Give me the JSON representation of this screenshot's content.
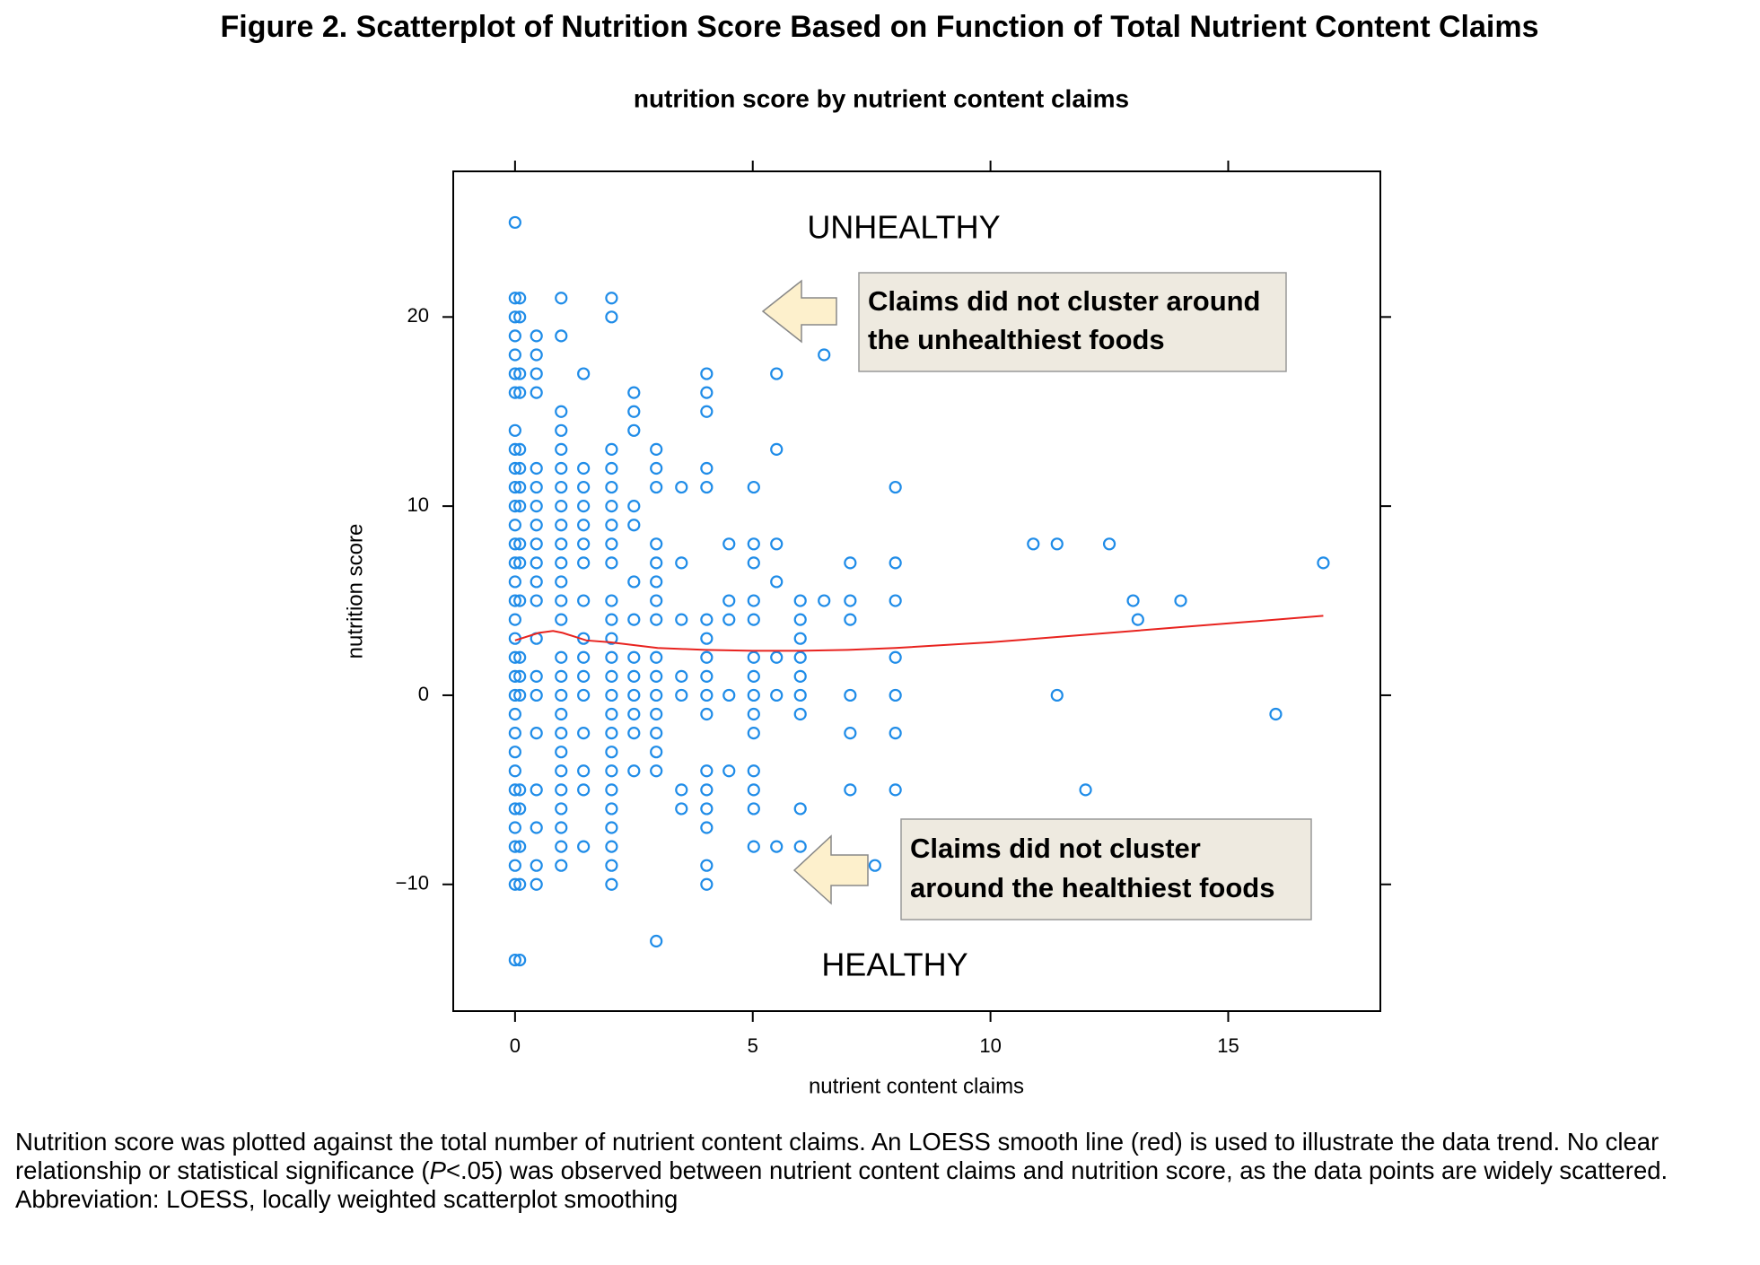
{
  "chart_data": {
    "type": "scatter",
    "figure_title": "Figure 2. Scatterplot of Nutrition Score Based on Function of Total Nutrient Content Claims",
    "title": "nutrition score by nutrient content claims",
    "x_label": "nutrient content claims",
    "y_label": "nutrition score",
    "xlim": [
      -1.3,
      18.2
    ],
    "ylim": [
      -16.7,
      27.7
    ],
    "xticks": [
      0,
      5,
      10,
      15
    ],
    "yticks": [
      {
        "value": -10,
        "label": "−10"
      },
      0,
      10,
      20
    ],
    "annotations": [
      "UNHEALTHY",
      "HEALTHY"
    ],
    "callouts": [
      {
        "lines": [
          "Claims did not cluster around",
          "the unhealthiest foods"
        ]
      },
      {
        "lines": [
          "Claims did not cluster",
          "around the healthiest foods"
        ]
      }
    ],
    "series": [
      {
        "color": "#1f8ce8",
        "x": [
          0,
          0,
          0,
          0,
          0,
          0,
          0,
          0,
          0,
          0,
          0,
          0,
          0,
          0,
          0,
          0,
          0,
          0,
          0,
          0,
          0,
          0,
          0,
          0,
          0,
          0,
          0,
          0,
          0,
          0,
          0,
          0,
          0,
          0.1,
          0.1,
          0.1,
          0.1,
          0.1,
          0.1,
          0.1,
          0.1,
          0.1,
          0.1,
          0.1,
          0.1,
          0.1,
          0.1,
          0.1,
          0.1,
          0.1,
          0.1,
          0.1,
          0.45,
          0.45,
          0.45,
          0.45,
          0.45,
          0.45,
          0.45,
          0.45,
          0.45,
          0.45,
          0.45,
          0.45,
          0.45,
          0.45,
          0.45,
          0.45,
          0.45,
          0.45,
          0.45,
          0.45,
          0.97,
          0.97,
          0.97,
          0.97,
          0.97,
          0.97,
          0.97,
          0.97,
          0.97,
          0.97,
          0.97,
          0.97,
          0.97,
          0.97,
          0.97,
          0.97,
          0.97,
          0.97,
          0.97,
          0.97,
          0.97,
          0.97,
          0.97,
          0.97,
          0.97,
          0.97,
          1.44,
          1.44,
          1.44,
          1.44,
          1.44,
          1.44,
          1.44,
          1.44,
          1.44,
          1.44,
          1.44,
          1.44,
          1.44,
          1.44,
          1.44,
          1.44,
          2.03,
          2.03,
          2.03,
          2.03,
          2.03,
          2.03,
          2.03,
          2.03,
          2.03,
          2.03,
          2.03,
          2.03,
          2.03,
          2.03,
          2.03,
          2.03,
          2.03,
          2.03,
          2.03,
          2.03,
          2.03,
          2.03,
          2.03,
          2.03,
          2.03,
          2.5,
          2.5,
          2.5,
          2.5,
          2.5,
          2.5,
          2.5,
          2.5,
          2.5,
          2.5,
          2.5,
          2.5,
          2.5,
          2.97,
          2.97,
          2.97,
          2.97,
          2.97,
          2.97,
          2.97,
          2.97,
          2.97,
          2.97,
          2.97,
          2.97,
          2.97,
          2.97,
          2.97,
          2.97,
          3.5,
          3.5,
          3.5,
          3.5,
          3.5,
          3.5,
          3.5,
          4.03,
          4.03,
          4.03,
          4.03,
          4.03,
          4.03,
          4.03,
          4.03,
          4.03,
          4.03,
          4.03,
          4.03,
          4.03,
          4.03,
          4.03,
          4.03,
          4.03,
          4.5,
          4.5,
          4.5,
          4.5,
          4.5,
          5.02,
          5.02,
          5.02,
          5.02,
          5.02,
          5.02,
          5.02,
          5.02,
          5.02,
          5.02,
          5.02,
          5.02,
          5.02,
          5.02,
          5.5,
          5.5,
          5.5,
          5.5,
          5.5,
          5.5,
          5.5,
          6,
          6,
          6,
          6,
          6,
          6,
          6,
          6,
          6,
          6.5,
          6.5,
          7.05,
          7.05,
          7.05,
          7.05,
          7.05,
          7.05,
          7.57,
          8,
          8,
          8,
          8,
          8,
          8,
          8,
          10.9,
          11.4,
          11.4,
          12,
          12.5,
          13,
          13.1,
          14,
          16,
          17
        ],
        "values": [
          25,
          21,
          20,
          19,
          18,
          17,
          16,
          14,
          13,
          12,
          11,
          10,
          9,
          8,
          7,
          6,
          5,
          4,
          3,
          2,
          1,
          0,
          -1,
          -2,
          -3,
          -4,
          -5,
          -6,
          -7,
          -8,
          -9,
          -10,
          -14,
          21,
          20,
          17,
          16,
          13,
          12,
          11,
          10,
          8,
          7,
          5,
          2,
          1,
          0,
          -5,
          -6,
          -8,
          -10,
          -14,
          19,
          18,
          17,
          16,
          12,
          11,
          10,
          9,
          8,
          7,
          6,
          5,
          3,
          1,
          0,
          -2,
          -5,
          -7,
          -9,
          -10,
          21,
          19,
          15,
          14,
          13,
          12,
          11,
          10,
          9,
          8,
          7,
          6,
          5,
          4,
          2,
          1,
          0,
          -1,
          -2,
          -3,
          -4,
          -5,
          -6,
          -7,
          -8,
          -9,
          17,
          12,
          11,
          10,
          9,
          8,
          7,
          5,
          3,
          2,
          1,
          0,
          -2,
          -4,
          -5,
          -8,
          21,
          20,
          13,
          12,
          11,
          10,
          9,
          8,
          7,
          5,
          4,
          3,
          2,
          1,
          0,
          -1,
          -2,
          -3,
          -4,
          -5,
          -6,
          -7,
          -8,
          -9,
          -10,
          16,
          15,
          14,
          10,
          9,
          6,
          4,
          2,
          1,
          0,
          -1,
          -2,
          -4,
          13,
          12,
          11,
          8,
          7,
          6,
          5,
          4,
          2,
          1,
          0,
          -1,
          -2,
          -3,
          -4,
          -13,
          11,
          7,
          4,
          1,
          0,
          -5,
          -6,
          17,
          16,
          15,
          12,
          11,
          4,
          3,
          2,
          1,
          0,
          -1,
          -4,
          -5,
          -6,
          -7,
          -9,
          -10,
          8,
          5,
          4,
          0,
          -4,
          11,
          8,
          7,
          5,
          4,
          2,
          1,
          0,
          -1,
          -2,
          -4,
          -5,
          -6,
          -8,
          17,
          13,
          8,
          6,
          2,
          0,
          -8,
          5,
          4,
          3,
          2,
          1,
          0,
          -1,
          -6,
          -8,
          18,
          5,
          7,
          5,
          4,
          0,
          -2,
          -5,
          -9,
          11,
          7,
          5,
          2,
          0,
          -2,
          -5,
          8,
          8,
          0,
          -5,
          8,
          5,
          4,
          5,
          -1,
          7
        ]
      }
    ],
    "loess": {
      "color": "#e8231f",
      "x": [
        0,
        0.5,
        0.8,
        1,
        1.5,
        2,
        3,
        4,
        5,
        6,
        7,
        8,
        10,
        12,
        14,
        17
      ],
      "values": [
        2.9,
        3.3,
        3.4,
        3.3,
        2.9,
        2.8,
        2.5,
        2.4,
        2.35,
        2.35,
        2.4,
        2.5,
        2.8,
        3.2,
        3.6,
        4.2
      ]
    },
    "caption": [
      "Nutrition score was plotted against the total number of nutrient content claims. An LOESS smooth line (red) is used to illustrate the data trend. No clear relationship or statistical significance (",
      "P",
      "<.05) was observed between nutrient content claims and nutrition score, as the data points are widely scattered."
    ],
    "abbreviation": "Abbreviation: LOESS, locally weighted scatterplot smoothing"
  }
}
